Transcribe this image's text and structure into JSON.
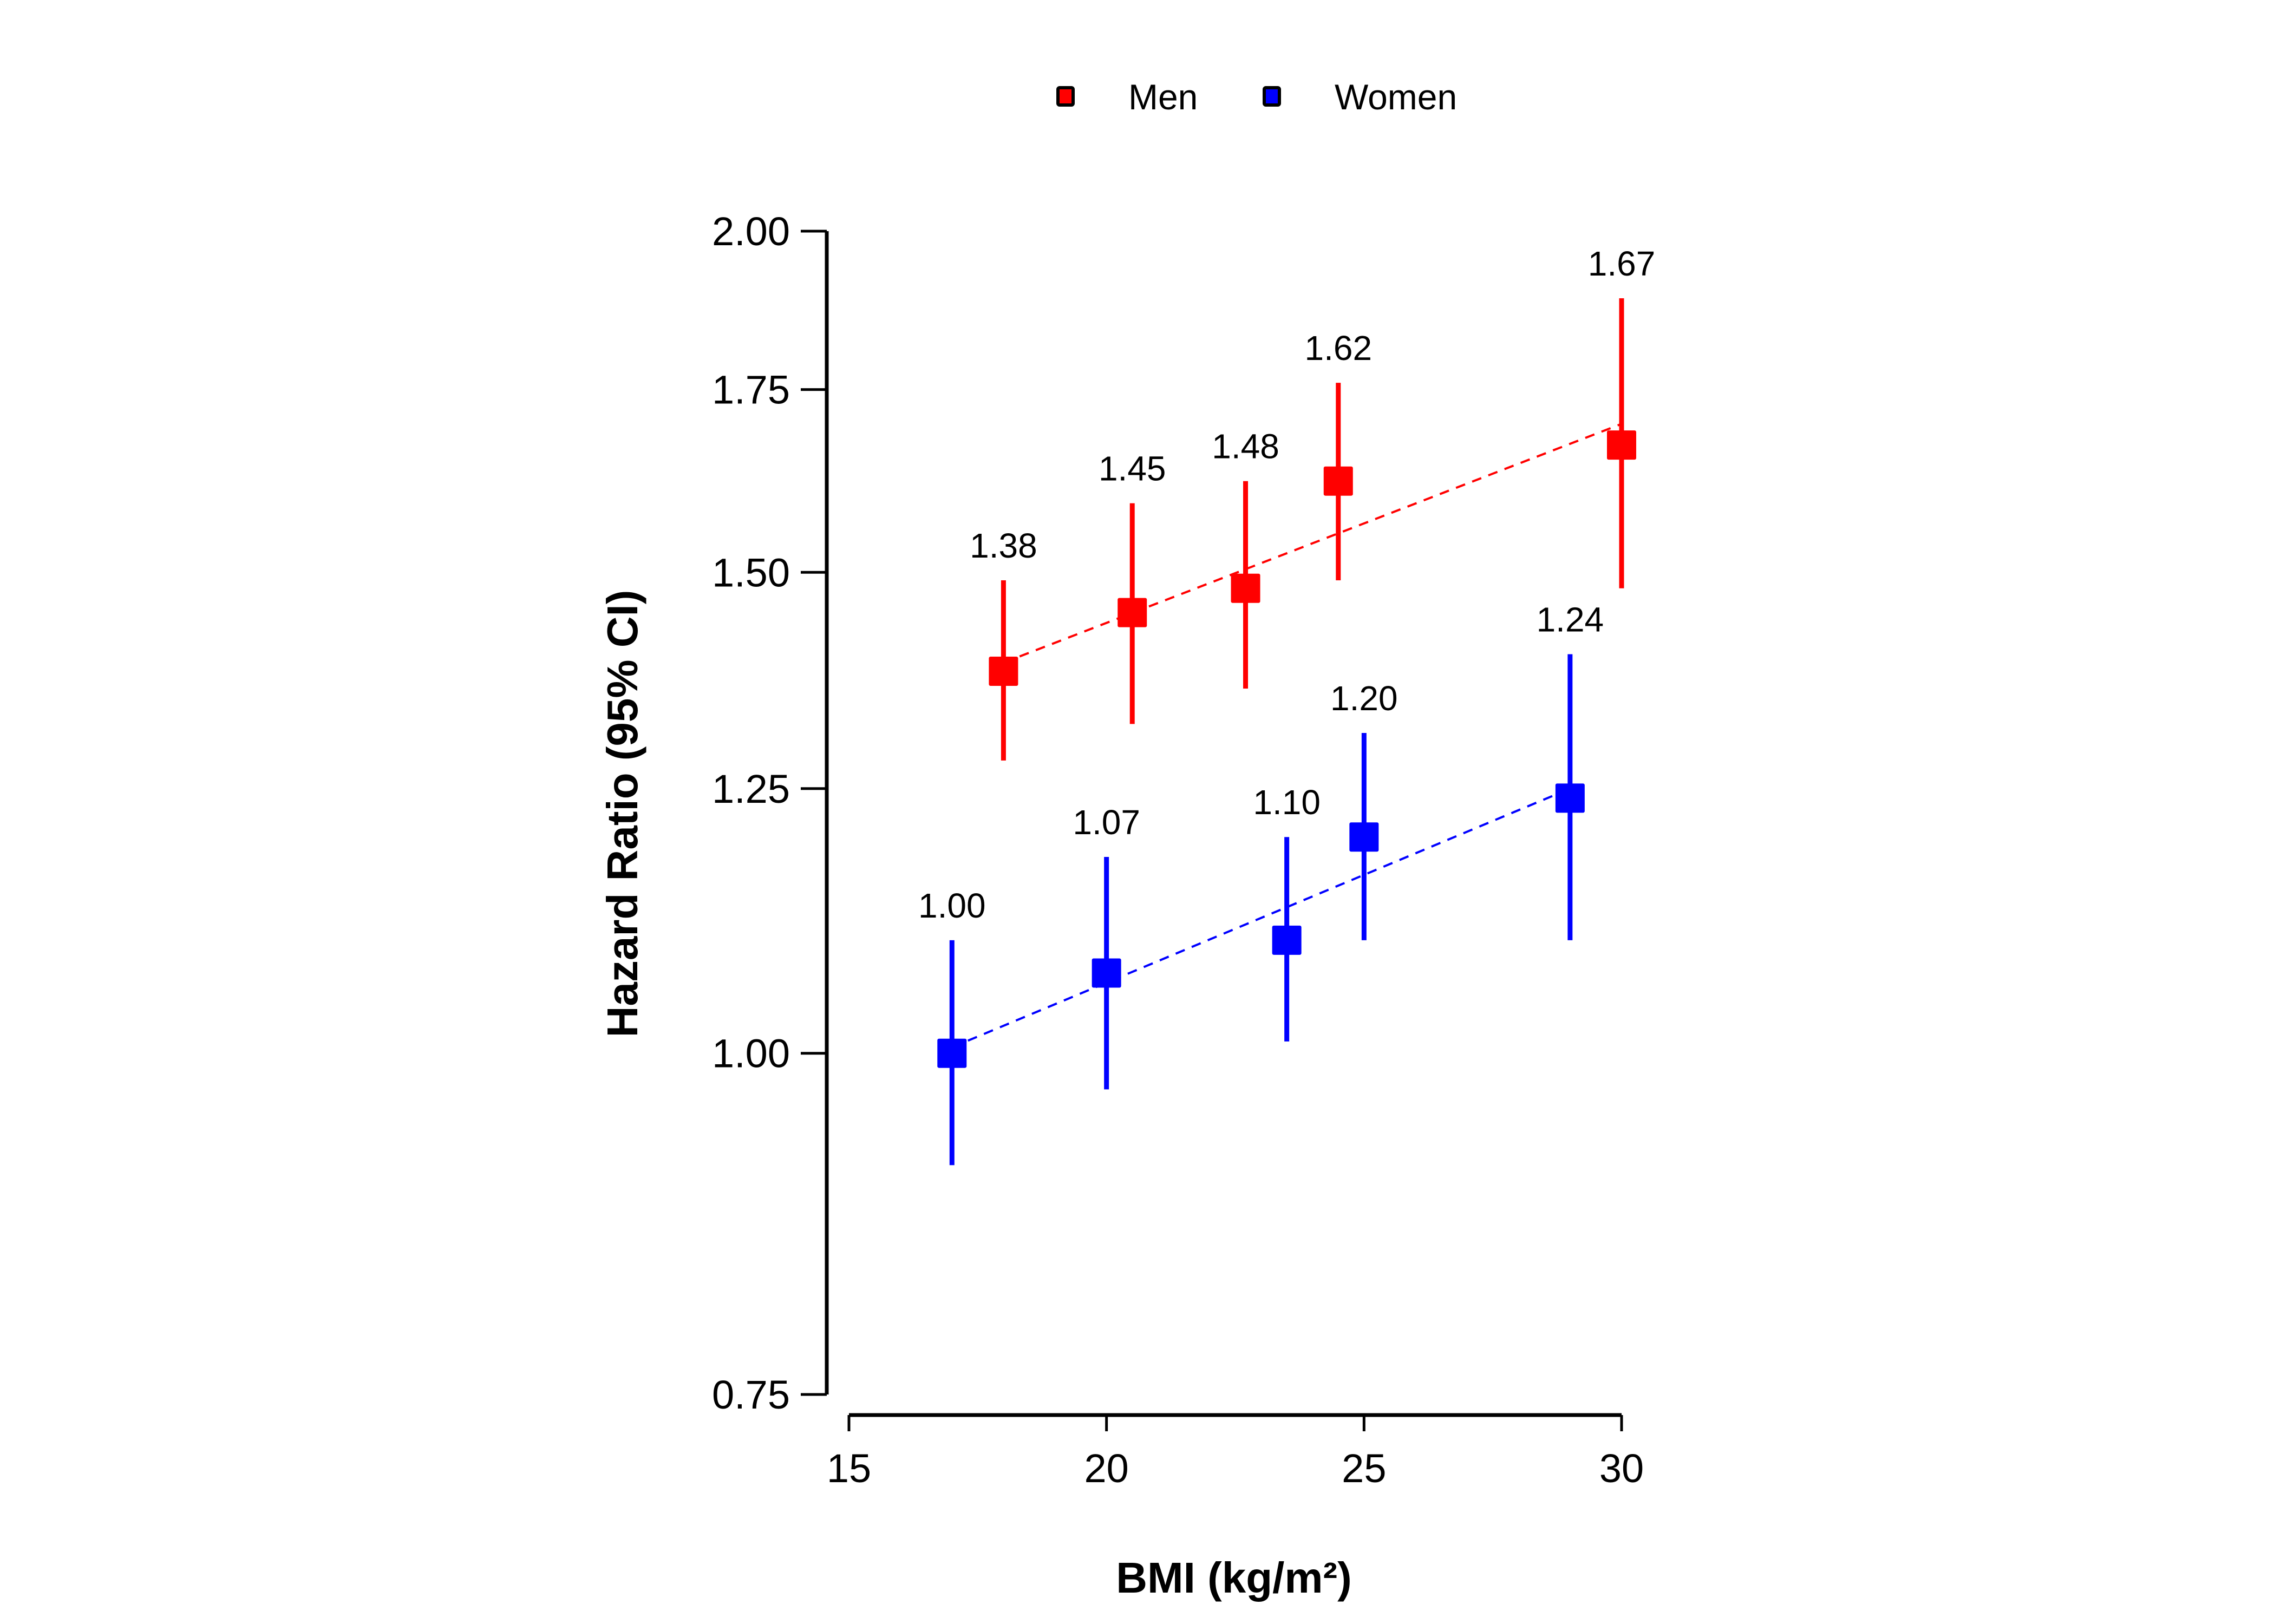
{
  "chart_data": {
    "type": "scatter",
    "title": "",
    "xlabel": "BMI (kg/m²)",
    "ylabel": "Hazard Ratio (95% CI)",
    "xlim": [
      15,
      30
    ],
    "ylim": [
      0.75,
      2.0
    ],
    "yscale": "log",
    "x_ticks": [
      15,
      20,
      25,
      30
    ],
    "x_tick_labels": [
      "15",
      "20",
      "25",
      "30"
    ],
    "y_ticks": [
      0.75,
      1.0,
      1.25,
      1.5,
      1.75,
      2.0
    ],
    "y_tick_labels": [
      "0.75",
      "1.00",
      "1.25",
      "1.50",
      "1.75",
      "2.00"
    ],
    "grid": false,
    "legend_position": "top-center",
    "series": [
      {
        "name": "Men",
        "color": "#ff0000",
        "x": [
          18,
          20.5,
          22.7,
          24.5,
          30
        ],
        "values": [
          1.38,
          1.45,
          1.48,
          1.62,
          1.67
        ],
        "labels": [
          "1.38",
          "1.45",
          "1.48",
          "1.62",
          "1.67"
        ],
        "ci_lower": [
          1.28,
          1.32,
          1.36,
          1.49,
          1.48
        ],
        "ci_upper": [
          1.49,
          1.59,
          1.62,
          1.76,
          1.89
        ],
        "trend": {
          "style": "dashed",
          "from": [
            18,
            1.39
          ],
          "to": [
            30,
            1.7
          ]
        }
      },
      {
        "name": "Women",
        "color": "#0000ff",
        "x": [
          17,
          20,
          23.5,
          25,
          29
        ],
        "values": [
          1.0,
          1.07,
          1.1,
          1.2,
          1.24
        ],
        "labels": [
          "1.00",
          "1.07",
          "1.10",
          "1.20",
          "1.24"
        ],
        "ci_lower": [
          0.91,
          0.97,
          1.01,
          1.1,
          1.1
        ],
        "ci_upper": [
          1.1,
          1.18,
          1.2,
          1.31,
          1.4
        ],
        "trend": {
          "style": "dashed",
          "from": [
            17,
            1.005
          ],
          "to": [
            29,
            1.25
          ]
        }
      }
    ]
  }
}
